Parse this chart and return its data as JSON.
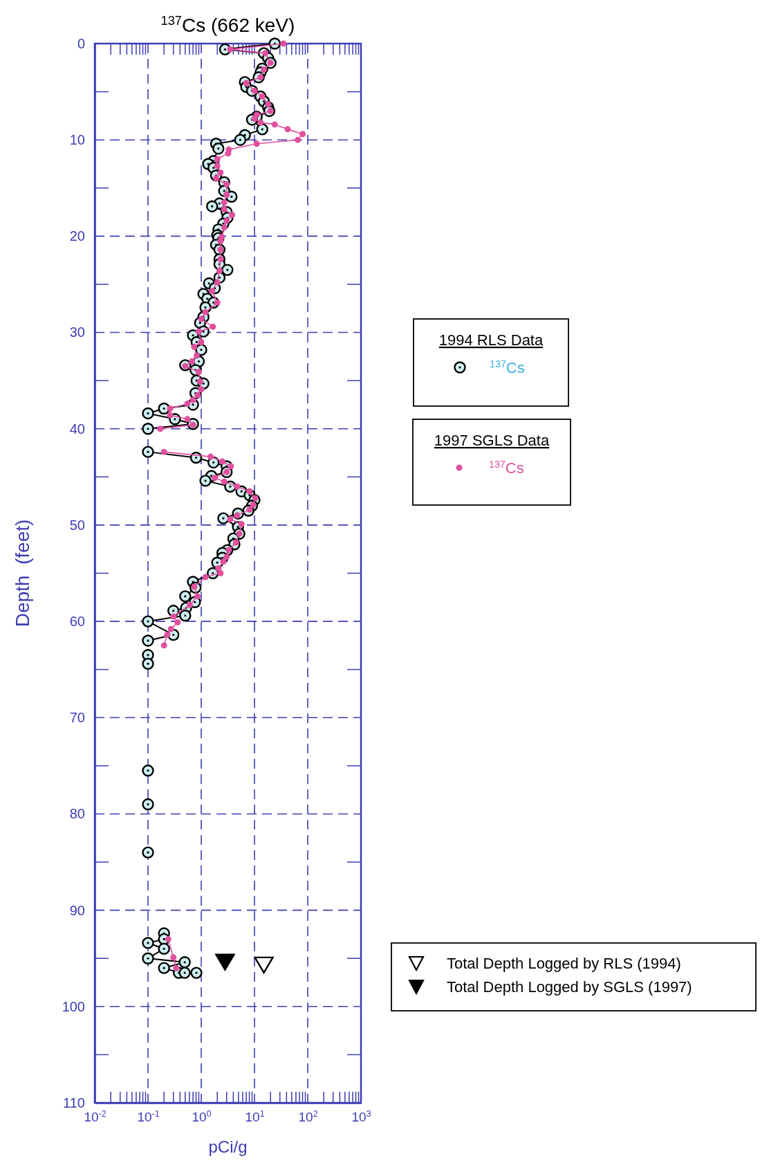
{
  "chart_data": {
    "type": "line",
    "title": "$^{137}$Cs (662 keV)",
    "xlabel": "pCi/g",
    "ylabel": "Depth  (feet)",
    "log": "x",
    "grid": true,
    "legend": "right",
    "line_style": "solid",
    "xlim": [
      0.01,
      1000
    ],
    "ylim": [
      110,
      0
    ],
    "xticks": [
      {
        "value": 0.01,
        "label": "10$^{-2}$"
      },
      {
        "value": 0.1,
        "label": "10$^{-1}$"
      },
      {
        "value": 1,
        "label": "10$^{0}$"
      },
      {
        "value": 10,
        "label": "10$^{1}$"
      },
      {
        "value": 100,
        "label": "10$^{2}$"
      },
      {
        "value": 1000,
        "label": "10$^{3}$"
      }
    ],
    "yticks": [
      0,
      10,
      20,
      30,
      40,
      50,
      60,
      70,
      80,
      90,
      100,
      110
    ],
    "annotations": [
      "1994 RLS Data",
      "1997 SGLS Data"
    ],
    "series": [
      {
        "name": "$^{137}$Cs",
        "marker": "circle",
        "color": "#000000",
        "x": [
          24,
          2.8,
          15,
          18,
          20,
          14,
          13,
          12,
          6.6,
          7,
          9,
          13,
          15,
          18,
          19,
          11,
          9,
          14,
          6.6,
          5.4,
          1.9,
          2.1,
          1.7,
          1.35,
          1.7,
          1.9,
          2.7,
          2.7,
          3.7,
          2.2,
          1.6,
          3,
          3.1,
          2.6,
          2.1,
          2.0,
          2.1,
          1.9,
          2.2,
          2.2,
          2.2,
          3.1,
          2.2,
          1.4,
          1.8,
          1.1,
          1.3,
          1.7,
          1.2,
          1.1,
          0.95,
          1.1,
          0.7,
          0.82,
          1.0,
          0.9,
          0.5,
          0.78,
          0.82,
          1.1,
          0.78,
          0.7,
          0.2,
          0.1,
          0.32,
          0.7,
          0.1,
          null,
          0.1,
          0.8,
          1.7,
          3.0,
          3.0,
          1.55,
          1.2,
          3.5,
          5.7,
          8.1,
          10,
          9,
          7.7,
          4.9,
          2.6,
          4.9,
          5.2,
          4.0,
          4.2,
          3.1,
          2.5,
          2.5,
          2.0,
          1.65,
          0.7,
          0.78,
          0.5,
          0.76,
          0.52,
          0.3,
          0.5,
          0.1,
          0.3,
          0.1,
          null,
          0.1,
          null,
          0.1,
          null,
          0.1,
          null,
          0.1,
          null,
          0.1,
          null,
          0.2,
          0.2,
          0.1,
          0.2,
          0.1,
          0.49,
          0.2,
          0.38,
          0.49,
          0.81
        ],
        "values": [
          0,
          0.6,
          1,
          1.5,
          2,
          2.6,
          3,
          3.5,
          4,
          4.5,
          4.9,
          5.5,
          6,
          6.6,
          7,
          7.6,
          7.9,
          8.9,
          9.5,
          10,
          10.4,
          10.9,
          12.2,
          12.5,
          12.9,
          13.7,
          14.4,
          15.3,
          15.9,
          16.6,
          16.9,
          17.5,
          18.1,
          18.7,
          19.3,
          19.9,
          20.2,
          20.9,
          21.4,
          22.4,
          22.9,
          23.5,
          24.3,
          24.9,
          25.4,
          26,
          26.5,
          26.9,
          27.4,
          28.4,
          29,
          29.9,
          30.3,
          31,
          31.8,
          33,
          33.4,
          33.9,
          35,
          35.3,
          36.3,
          37.5,
          37.9,
          38.4,
          39,
          39.5,
          40,
          null,
          42.4,
          43,
          43.5,
          43.9,
          44.5,
          44.9,
          45.4,
          46,
          46.5,
          46.9,
          47.4,
          48,
          48.5,
          48.8,
          49.3,
          50.2,
          50.9,
          51.4,
          52,
          52.6,
          52.9,
          53.4,
          53.9,
          55,
          55.9,
          56.5,
          57.4,
          58,
          58.6,
          58.9,
          59.4,
          60,
          61.4,
          62,
          null,
          63.5,
          null,
          64.4,
          null,
          75.5,
          null,
          79,
          null,
          84,
          null,
          92.4,
          93,
          93.4,
          94,
          95,
          95.4,
          96,
          96.5,
          96.5,
          96.5
        ]
      },
      {
        "name": "$^{137}$Cs",
        "marker": "circle",
        "color": "#e0509e",
        "x": [
          35,
          3.5,
          16,
          20,
          15,
          13,
          7,
          10,
          14,
          18,
          20,
          11,
          10,
          13,
          24,
          42,
          80,
          65,
          11,
          3.3,
          3.2,
          2.0,
          2.0,
          2.3,
          1.9,
          3.0,
          3.0,
          2.7,
          2.7,
          3.8,
          3.0,
          2.7,
          2.4,
          2.3,
          2.3,
          2.3,
          2.2,
          2.0,
          1.6,
          2.0,
          1.2,
          1.0,
          1.65,
          0.9,
          1.0,
          0.74,
          0.82,
          0.67,
          0.5,
          0.9,
          0.95,
          1.0,
          0.86,
          0.7,
          0.55,
          0.26,
          0.26,
          0.55,
          0.7,
          0.17,
          null,
          0.2,
          1.5,
          2.5,
          3.6,
          3.0,
          1.8,
          2.7,
          4.7,
          8.1,
          10.4,
          9.4,
          8.1,
          4.7,
          3.5,
          5.7,
          5.2,
          4.5,
          3.3,
          3.0,
          2.6,
          2.1,
          2.3,
          1.2,
          0.74,
          0.85,
          0.61,
          0.3,
          0.36,
          0.27,
          0.23,
          0.2,
          null,
          0.24,
          0.3,
          0.34
        ],
        "values": [
          0,
          0.6,
          1,
          2,
          2.7,
          3.5,
          4.1,
          4.9,
          5.5,
          6.3,
          7,
          7.4,
          7.8,
          8.2,
          8.4,
          8.9,
          9.4,
          10,
          10.4,
          11,
          11.4,
          12,
          12.7,
          13.4,
          14,
          14.6,
          15.7,
          16.5,
          17.2,
          17.8,
          18.4,
          19.1,
          20.1,
          20.5,
          21.4,
          22.4,
          23.6,
          24.8,
          25.7,
          26.9,
          27.9,
          28.6,
          29.4,
          29.9,
          31,
          31.5,
          32.4,
          33,
          33.5,
          34.1,
          35.1,
          35.9,
          36.5,
          37,
          37.4,
          37.9,
          38.6,
          39,
          39.6,
          40,
          null,
          42.4,
          42.9,
          43.4,
          43.9,
          44.5,
          45.1,
          45.5,
          46,
          46.5,
          47.2,
          47.9,
          48.4,
          49,
          49.4,
          49.9,
          50.9,
          51.8,
          52.6,
          53.3,
          53.8,
          54.5,
          55,
          55.4,
          56.4,
          57.4,
          58.3,
          59.5,
          60.1,
          60.8,
          61.4,
          62.5,
          null,
          93,
          94.9,
          96
        ]
      },
      {
        "name": "Total Depth Logged by RLS (1994)",
        "type": "scatter",
        "marker": "triangle",
        "color": "#ffffff",
        "x": [
          15
        ],
        "values": [
          95.6
        ]
      },
      {
        "name": "Total Depth Logged by SGLS (1997)",
        "type": "scatter",
        "marker": "triangle",
        "color": "#000000",
        "x": [
          2.8
        ],
        "values": [
          95.3
        ]
      }
    ]
  }
}
